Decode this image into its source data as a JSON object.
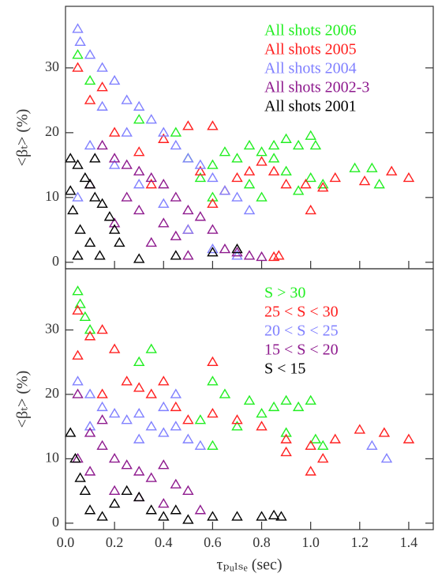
{
  "chart_data": [
    {
      "type": "scatter",
      "y_label": "<βₜ> (%)",
      "xlim": [
        0,
        1.5
      ],
      "ylim": [
        -1,
        39.5
      ],
      "yticks": [
        0,
        10,
        20,
        30
      ],
      "series": [
        {
          "name": "All shots 2006",
          "color": "#22ee22",
          "x": [
            0.75,
            0.8,
            0.85,
            0.9,
            0.95,
            1.0,
            1.02,
            0.7,
            0.65,
            0.6,
            0.85,
            0.9,
            1.05,
            1.0,
            0.95,
            0.55,
            0.5,
            1.18,
            1.25,
            1.28,
            0.05,
            0.1,
            0.3,
            0.45,
            0.75,
            0.8,
            0.6
          ],
          "y": [
            18,
            17,
            18,
            19,
            18,
            19.5,
            18,
            16,
            17,
            15,
            16,
            14,
            12,
            13,
            11,
            13,
            16,
            14.5,
            14.5,
            12,
            32,
            28,
            22,
            20,
            12,
            10,
            10
          ]
        },
        {
          "name": "All shots 2005",
          "color": "#ff2020",
          "x": [
            1.4,
            1.33,
            1.22,
            1.1,
            1.05,
            1.0,
            0.98,
            0.9,
            0.85,
            0.8,
            0.75,
            0.7,
            0.65,
            0.6,
            0.55,
            0.5,
            0.4,
            0.3,
            0.2,
            0.1,
            0.05,
            0.15,
            0.6,
            0.85,
            0.87,
            0.5,
            0.35
          ],
          "y": [
            13,
            14,
            12.5,
            13,
            11.5,
            8,
            12,
            12,
            14,
            15.5,
            14,
            13,
            11,
            9,
            14,
            21,
            19,
            17,
            20,
            25,
            30,
            27,
            21,
            0.8,
            1,
            5,
            12
          ]
        },
        {
          "name": "All shots 2004",
          "color": "#8080ff",
          "x": [
            0.05,
            0.06,
            0.1,
            0.15,
            0.2,
            0.25,
            0.3,
            0.35,
            0.4,
            0.45,
            0.5,
            0.55,
            0.6,
            0.65,
            0.7,
            0.75,
            0.1,
            0.2,
            0.3,
            0.4,
            0.5,
            0.6,
            0.7,
            0.05,
            0.25,
            0.15
          ],
          "y": [
            36,
            34,
            32,
            30,
            28,
            25,
            24,
            22,
            20,
            18,
            16,
            15,
            13,
            11,
            10,
            8,
            18,
            15,
            12,
            9,
            5,
            2,
            1,
            10,
            20,
            24
          ]
        },
        {
          "name": "All shots 2002-3",
          "color": "#8e1a8e",
          "x": [
            0.15,
            0.2,
            0.25,
            0.3,
            0.35,
            0.4,
            0.45,
            0.5,
            0.55,
            0.6,
            0.65,
            0.7,
            0.75,
            0.8,
            0.3,
            0.4,
            0.2,
            0.1,
            0.35,
            0.25,
            0.45,
            0.5
          ],
          "y": [
            18,
            16,
            15,
            14,
            13,
            12,
            10,
            8,
            7,
            5,
            2,
            1.5,
            1,
            0.8,
            8,
            6,
            6,
            12,
            3,
            10,
            4,
            1
          ]
        },
        {
          "name": "All shots 2001",
          "color": "#000000",
          "x": [
            0.02,
            0.05,
            0.08,
            0.1,
            0.12,
            0.15,
            0.18,
            0.2,
            0.22,
            0.03,
            0.06,
            0.1,
            0.14,
            0.05,
            0.3,
            0.45,
            0.6,
            0.7,
            0.02,
            0.12
          ],
          "y": [
            16,
            15,
            13,
            12,
            10,
            9,
            7,
            5,
            3,
            8,
            5,
            3,
            1,
            1,
            0.5,
            1,
            1.5,
            2,
            11,
            16
          ]
        }
      ]
    },
    {
      "type": "scatter",
      "y_label": "<βₜ> (%)",
      "x_label": "τₚᵤₗₛₑ (sec)",
      "xlim": [
        0,
        1.5
      ],
      "ylim": [
        -1,
        39.5
      ],
      "yticks": [
        0,
        10,
        20,
        30
      ],
      "xticks": [
        {
          "value": 0,
          "label": "0.0"
        },
        0.2,
        0.4,
        0.6,
        0.8,
        {
          "value": 1,
          "label": "1.0"
        },
        1.2,
        1.4
      ],
      "series": [
        {
          "name": "S > 30",
          "color": "#22ee22",
          "x": [
            0.05,
            0.06,
            0.08,
            0.1,
            0.3,
            0.35,
            0.6,
            0.75,
            0.8,
            0.85,
            0.9,
            0.95,
            1.0,
            0.7,
            0.9,
            0.6,
            1.02,
            1.05,
            0.55,
            0.65
          ],
          "y": [
            36,
            34,
            32,
            30,
            25,
            27,
            22,
            19,
            17,
            18,
            19,
            18,
            19,
            15,
            14,
            12,
            13,
            12,
            16,
            20
          ]
        },
        {
          "name": "25 < S < 30",
          "color": "#ff2020",
          "x": [
            0.05,
            0.1,
            0.15,
            0.2,
            0.25,
            0.3,
            0.35,
            0.4,
            0.45,
            0.5,
            0.6,
            0.7,
            0.8,
            0.9,
            1.0,
            1.05,
            1.1,
            1.2,
            1.3,
            1.4,
            1.0,
            0.9,
            0.6,
            0.05,
            0.15
          ],
          "y": [
            33,
            29,
            30,
            27,
            22,
            21,
            20,
            22,
            18,
            16,
            17,
            16,
            15,
            13,
            12,
            10,
            13,
            14.5,
            14,
            13,
            8,
            11,
            25,
            26,
            20
          ]
        },
        {
          "name": "20 < S < 25",
          "color": "#8080ff",
          "x": [
            0.05,
            0.1,
            0.15,
            0.2,
            0.25,
            0.3,
            0.35,
            0.4,
            0.45,
            0.5,
            0.55,
            0.4,
            0.3,
            0.1,
            1.31,
            1.25,
            0.45
          ],
          "y": [
            22,
            20,
            18,
            17,
            16,
            17,
            15,
            14,
            15,
            13,
            12,
            18,
            13,
            15,
            10,
            12,
            20
          ]
        },
        {
          "name": "15 < S < 20",
          "color": "#8e1a8e",
          "x": [
            0.05,
            0.1,
            0.15,
            0.2,
            0.25,
            0.3,
            0.35,
            0.4,
            0.45,
            0.5,
            0.2,
            0.3,
            0.1,
            0.4,
            0.55,
            0.15,
            0.05
          ],
          "y": [
            20,
            14,
            12,
            10,
            9,
            8,
            7,
            9,
            6,
            5,
            5,
            4,
            8,
            3,
            2,
            16,
            10
          ]
        },
        {
          "name": "S < 15",
          "color": "#000000",
          "x": [
            0.02,
            0.04,
            0.06,
            0.08,
            0.1,
            0.15,
            0.2,
            0.3,
            0.35,
            0.4,
            0.5,
            0.6,
            0.7,
            0.8,
            0.85,
            0.88,
            0.45,
            0.25
          ],
          "y": [
            14,
            10,
            7,
            5,
            2,
            1,
            3,
            4,
            2,
            1,
            0.5,
            1,
            1,
            1,
            1.2,
            1,
            2,
            5
          ]
        }
      ]
    }
  ]
}
